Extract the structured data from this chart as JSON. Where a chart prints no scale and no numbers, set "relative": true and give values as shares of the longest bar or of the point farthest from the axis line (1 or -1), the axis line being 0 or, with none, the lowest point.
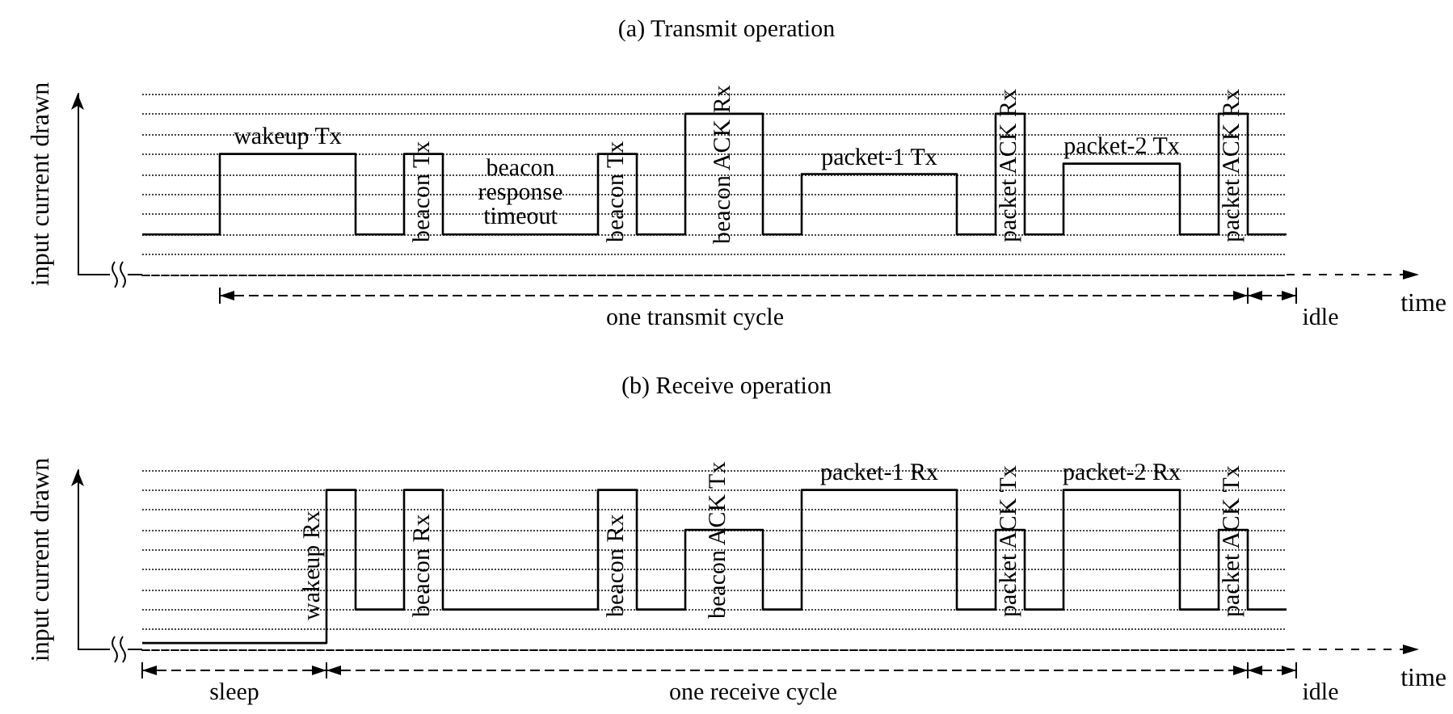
{
  "chart_data": [
    {
      "type": "step",
      "title": "(a) Transmit operation",
      "xlabel": "time",
      "ylabel": "input current drawn",
      "relative": true,
      "grid": "y",
      "color": "#000000",
      "categories": [
        null,
        null,
        null,
        null,
        null,
        null,
        null,
        null,
        null,
        null,
        null,
        null,
        null,
        null,
        null,
        null,
        null,
        null,
        null,
        null,
        null,
        null,
        null,
        null,
        null,
        null,
        null,
        null,
        null,
        null,
        null,
        null,
        null,
        null,
        null,
        null,
        null,
        null,
        null,
        null,
        null,
        null,
        null,
        null,
        null,
        null,
        null,
        null,
        null,
        null,
        null,
        null,
        null,
        null,
        null,
        null,
        null,
        null,
        null,
        null,
        null,
        null,
        null,
        null,
        null,
        null,
        null,
        null,
        null,
        null,
        null,
        null,
        null,
        null,
        null,
        null,
        null,
        null,
        null,
        null,
        null,
        null,
        null,
        null,
        null,
        null,
        null,
        null,
        null,
        null,
        null,
        null,
        null,
        null,
        null,
        null,
        null,
        null,
        null,
        null,
        null,
        null,
        null,
        null,
        null,
        null,
        null,
        null,
        null,
        null,
        null,
        null,
        null,
        null,
        null,
        null,
        null,
        null,
        null
      ],
      "values": [
        0.25,
        0.25,
        0.25,
        0.25,
        0.25,
        0.25,
        0.25,
        0.25,
        0.75,
        0.75,
        0.75,
        0.75,
        0.75,
        0.75,
        0.75,
        0.75,
        0.75,
        0.75,
        0.75,
        0.75,
        0.75,
        0.75,
        0.25,
        0.25,
        0.25,
        0.25,
        0.25,
        0.75,
        0.75,
        0.75,
        0.75,
        0.25,
        0.25,
        0.25,
        0.25,
        0.25,
        0.25,
        0.25,
        0.25,
        0.25,
        0.25,
        0.25,
        0.25,
        0.25,
        0.25,
        0.25,
        0.25,
        0.75,
        0.75,
        0.75,
        0.75,
        0.25,
        0.25,
        0.25,
        0.25,
        0.25,
        1,
        1,
        1,
        1,
        1,
        1,
        1,
        1,
        0.25,
        0.25,
        0.25,
        0.25,
        0.625,
        0.625,
        0.625,
        0.625,
        0.625,
        0.625,
        0.625,
        0.625,
        0.625,
        0.625,
        0.625,
        0.625,
        0.625,
        0.625,
        0.625,
        0.625,
        0.25,
        0.25,
        0.25,
        0.25,
        1,
        1,
        1,
        0.25,
        0.25,
        0.25,
        0.25,
        0.69,
        0.69,
        0.69,
        0.69,
        0.69,
        0.69,
        0.69,
        0.69,
        0.69,
        0.69,
        0.69,
        0.69,
        0.25,
        0.25,
        0.25,
        0.25,
        1,
        1,
        1,
        0.25,
        0.25,
        0.25,
        0.25,
        0.25
      ],
      "annotations": [
        "wakeup Tx",
        "beacon Tx",
        "beacon response timeout",
        "beacon Tx",
        "beacon ACK Rx",
        "packet-1 Tx",
        "packet ACK Rx",
        "packet-2 Tx",
        "packet ACK Rx",
        "one transmit cycle",
        "idle"
      ]
    },
    {
      "type": "step",
      "title": "(b) Receive operation",
      "xlabel": "time",
      "ylabel": "input current drawn",
      "relative": true,
      "grid": "y",
      "color": "#000000",
      "categories": [
        null,
        null,
        null,
        null,
        null,
        null,
        null,
        null,
        null,
        null,
        null,
        null,
        null,
        null,
        null,
        null,
        null,
        null,
        null,
        null,
        null,
        null,
        null,
        null,
        null,
        null,
        null,
        null,
        null,
        null,
        null,
        null,
        null,
        null,
        null,
        null,
        null,
        null,
        null,
        null,
        null,
        null,
        null,
        null,
        null,
        null,
        null,
        null,
        null,
        null,
        null,
        null,
        null,
        null,
        null,
        null,
        null,
        null,
        null,
        null,
        null,
        null,
        null,
        null,
        null,
        null,
        null,
        null,
        null,
        null,
        null,
        null,
        null,
        null,
        null,
        null,
        null,
        null,
        null,
        null,
        null,
        null,
        null,
        null,
        null,
        null,
        null,
        null,
        null,
        null,
        null,
        null,
        null,
        null,
        null,
        null,
        null,
        null,
        null,
        null,
        null,
        null,
        null,
        null,
        null,
        null,
        null,
        null,
        null,
        null,
        null,
        null,
        null,
        null,
        null,
        null,
        null,
        null,
        null
      ],
      "values": [
        0.04,
        0.04,
        0.04,
        0.04,
        0.04,
        0.04,
        0.04,
        0.04,
        0.04,
        0.04,
        0.04,
        0.04,
        0.04,
        0.04,
        0.04,
        0.04,
        0.04,
        0.04,
        0.04,
        1,
        1,
        1,
        0.25,
        0.25,
        0.25,
        0.25,
        0.25,
        1,
        1,
        1,
        1,
        0.25,
        0.25,
        0.25,
        0.25,
        0.25,
        0.25,
        0.25,
        0.25,
        0.25,
        0.25,
        0.25,
        0.25,
        0.25,
        0.25,
        0.25,
        0.25,
        1,
        1,
        1,
        1,
        0.25,
        0.25,
        0.25,
        0.25,
        0.25,
        0.75,
        0.75,
        0.75,
        0.75,
        0.75,
        0.75,
        0.75,
        0.75,
        0.25,
        0.25,
        0.25,
        0.25,
        1,
        1,
        1,
        1,
        1,
        1,
        1,
        1,
        1,
        1,
        1,
        1,
        1,
        1,
        1,
        1,
        0.25,
        0.25,
        0.25,
        0.25,
        0.75,
        0.75,
        0.75,
        0.25,
        0.25,
        0.25,
        0.25,
        1,
        1,
        1,
        1,
        1,
        1,
        1,
        1,
        1,
        1,
        1,
        1,
        0.25,
        0.25,
        0.25,
        0.25,
        0.75,
        0.75,
        0.75,
        0.25,
        0.25,
        0.25,
        0.25,
        0.25
      ],
      "annotations": [
        "wakeup Rx",
        "beacon Rx",
        "beacon Rx",
        "beacon ACK Tx",
        "packet-1 Rx",
        "packet ACK Tx",
        "packet-2 Rx",
        "packet ACK Tx",
        "sleep",
        "one receive cycle",
        "idle"
      ]
    }
  ]
}
